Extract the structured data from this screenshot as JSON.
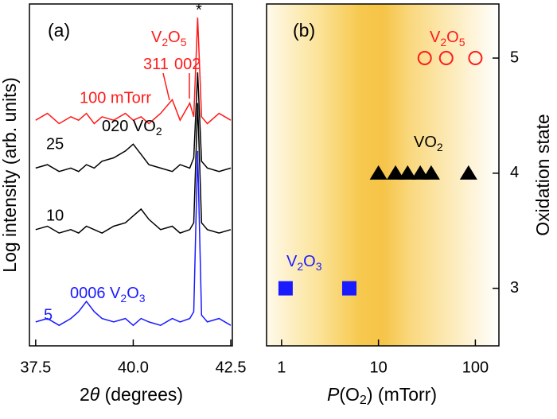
{
  "chart_data": [
    {
      "type": "line",
      "label": "(a)",
      "xlabel": [
        "2",
        {
          "it": "θ"
        },
        " (degrees)"
      ],
      "ylabel": "Log intensity (arb. units)",
      "xlim": [
        37.34,
        42.54
      ],
      "xticks": [
        37.5,
        {
          "value": 40,
          "label": "40.0"
        },
        42.5
      ],
      "ylim": [
        0,
        100
      ],
      "x": [
        37.5,
        37.8,
        38.1,
        38.4,
        38.6,
        38.8,
        39.0,
        39.2,
        39.5,
        39.8,
        40.0,
        40.2,
        40.4,
        40.7,
        41.0,
        41.2,
        41.45,
        41.55,
        41.65,
        41.75,
        41.9,
        42.2,
        42.5
      ],
      "series": [
        {
          "name": "100 mTorr",
          "color": "#ff1a1a",
          "values": [
            66,
            68,
            65,
            67,
            66,
            68,
            65,
            67,
            66,
            68,
            66,
            67,
            65,
            68,
            72,
            66,
            71,
            67,
            96,
            67,
            65,
            68,
            66
          ]
        },
        {
          "name": "25",
          "color": "#000000",
          "values": [
            52,
            53,
            51,
            52,
            51,
            53,
            52,
            54,
            55,
            57,
            59,
            56,
            53,
            52,
            51,
            53,
            52,
            55,
            80,
            54,
            52,
            51,
            52
          ]
        },
        {
          "name": "10",
          "color": "#000000",
          "values": [
            34,
            35,
            33,
            34,
            33,
            35,
            34,
            33,
            35,
            36,
            38,
            40,
            37,
            34,
            35,
            33,
            34,
            36,
            71,
            36,
            34,
            33,
            34
          ]
        },
        {
          "name": "5",
          "color": "#1a1aff",
          "values": [
            7,
            8,
            6,
            8,
            10,
            13,
            10,
            8,
            7,
            8,
            6,
            8,
            7,
            6,
            8,
            7,
            8,
            10,
            57,
            9,
            7,
            8,
            6
          ]
        }
      ],
      "annotations": [
        {
          "text": [
            "*"
          ],
          "color": "#000000"
        },
        {
          "text": [
            "V",
            {
              "sub": "2"
            },
            "O",
            {
              "sub": "5"
            }
          ],
          "color": "#ff1a1a"
        },
        {
          "text": [
            "311"
          ],
          "color": "#ff1a1a"
        },
        {
          "text": [
            "002"
          ],
          "color": "#ff1a1a"
        },
        {
          "text": [
            "020 VO",
            {
              "sub": "2"
            }
          ],
          "color": "#000000"
        },
        {
          "text": [
            "0006 V",
            {
              "sub": "2"
            },
            "O",
            {
              "sub": "3"
            }
          ],
          "color": "#1a1aff"
        }
      ]
    },
    {
      "type": "scatter",
      "label": "(b)",
      "xlabel": [
        {
          "it": "P"
        },
        "(O",
        {
          "sub": "2"
        },
        ") (mTorr)"
      ],
      "ylabel": "Oxidation state",
      "log_x": true,
      "xlim": [
        0.7,
        175
      ],
      "xticks": [
        1,
        10,
        100
      ],
      "ylim": [
        2.5,
        5.47
      ],
      "yticks": [
        3,
        4,
        5
      ],
      "series": [
        {
          "name": [
            "V",
            {
              "sub": "2"
            },
            "O",
            {
              "sub": "5"
            }
          ],
          "marker": "circle",
          "color": "#ff1a1a",
          "x": [
            30,
            50,
            100
          ],
          "values": [
            5,
            5,
            5
          ]
        },
        {
          "name": [
            "VO",
            {
              "sub": "2"
            }
          ],
          "marker": "triangle",
          "color": "#000000",
          "x": [
            10,
            15,
            20,
            27,
            35,
            85
          ],
          "values": [
            4,
            4,
            4,
            4,
            4,
            4
          ]
        },
        {
          "name": [
            "V",
            {
              "sub": "2"
            },
            "O",
            {
              "sub": "3"
            }
          ],
          "marker": "square",
          "color": "#1a1aff",
          "x": [
            1.1,
            5
          ],
          "values": [
            3,
            3
          ]
        }
      ]
    }
  ]
}
